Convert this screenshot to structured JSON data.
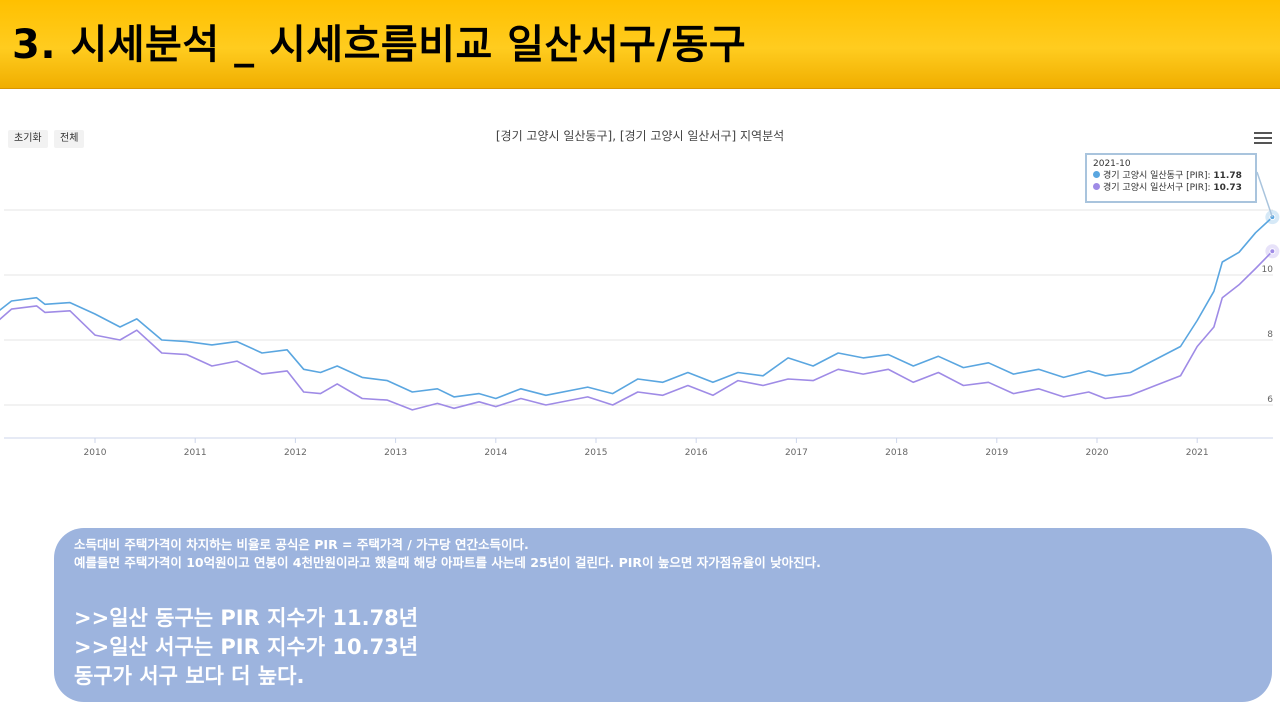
{
  "header": {
    "title": "3. 시세분석 _ 시세흐름비교 일산서구/동구"
  },
  "toolbar": {
    "reset_label": "초기화",
    "all_label": "전체"
  },
  "tooltip": {
    "date": "2021-10",
    "rows": [
      {
        "label": "경기 고양시 일산동구 [PIR]:",
        "value": "11.78"
      },
      {
        "label": "경기 고양시 일산서구 [PIR]:",
        "value": "10.73"
      }
    ]
  },
  "chart_data": {
    "type": "line",
    "title": "[경기 고양시 일산동구], [경기 고양시 일산서구] 지역분석",
    "xlabel": "",
    "ylabel": "",
    "x_ticks": [
      "2010",
      "2011",
      "2012",
      "2013",
      "2014",
      "2015",
      "2016",
      "2017",
      "2018",
      "2019",
      "2020",
      "2021"
    ],
    "y_ticks": [
      "6",
      "8",
      "10"
    ],
    "x_range": [
      "2009-01",
      "2021-10"
    ],
    "ylim": [
      5,
      12
    ],
    "grid": true,
    "legend": "none",
    "series": [
      {
        "name": "경기 고양시 일산동구 [PIR]",
        "color": "#5aa6e0",
        "points": [
          [
            "2009-01",
            8.8
          ],
          [
            "2009-03",
            9.2
          ],
          [
            "2009-06",
            9.3
          ],
          [
            "2009-07",
            9.1
          ],
          [
            "2009-10",
            9.15
          ],
          [
            "2010-01",
            8.8
          ],
          [
            "2010-04",
            8.4
          ],
          [
            "2010-06",
            8.65
          ],
          [
            "2010-09",
            8.0
          ],
          [
            "2010-12",
            7.95
          ],
          [
            "2011-03",
            7.85
          ],
          [
            "2011-06",
            7.95
          ],
          [
            "2011-09",
            7.6
          ],
          [
            "2011-12",
            7.7
          ],
          [
            "2012-02",
            7.1
          ],
          [
            "2012-04",
            7.0
          ],
          [
            "2012-06",
            7.2
          ],
          [
            "2012-09",
            6.85
          ],
          [
            "2012-12",
            6.75
          ],
          [
            "2013-03",
            6.4
          ],
          [
            "2013-06",
            6.5
          ],
          [
            "2013-08",
            6.25
          ],
          [
            "2013-11",
            6.35
          ],
          [
            "2014-01",
            6.2
          ],
          [
            "2014-04",
            6.5
          ],
          [
            "2014-07",
            6.3
          ],
          [
            "2014-12",
            6.55
          ],
          [
            "2015-03",
            6.35
          ],
          [
            "2015-06",
            6.8
          ],
          [
            "2015-09",
            6.7
          ],
          [
            "2015-12",
            7.0
          ],
          [
            "2016-03",
            6.7
          ],
          [
            "2016-06",
            7.0
          ],
          [
            "2016-09",
            6.9
          ],
          [
            "2016-12",
            7.45
          ],
          [
            "2017-03",
            7.2
          ],
          [
            "2017-06",
            7.6
          ],
          [
            "2017-09",
            7.45
          ],
          [
            "2017-12",
            7.55
          ],
          [
            "2018-03",
            7.2
          ],
          [
            "2018-06",
            7.5
          ],
          [
            "2018-09",
            7.15
          ],
          [
            "2018-12",
            7.3
          ],
          [
            "2019-03",
            6.95
          ],
          [
            "2019-06",
            7.1
          ],
          [
            "2019-09",
            6.85
          ],
          [
            "2019-12",
            7.05
          ],
          [
            "2020-02",
            6.9
          ],
          [
            "2020-05",
            7.0
          ],
          [
            "2020-08",
            7.4
          ],
          [
            "2020-11",
            7.8
          ],
          [
            "2021-01",
            8.6
          ],
          [
            "2021-03",
            9.5
          ],
          [
            "2021-04",
            10.4
          ],
          [
            "2021-06",
            10.7
          ],
          [
            "2021-08",
            11.3
          ],
          [
            "2021-10",
            11.78
          ]
        ]
      },
      {
        "name": "경기 고양시 일산서구 [PIR]",
        "color": "#9f8be6",
        "points": [
          [
            "2009-01",
            8.5
          ],
          [
            "2009-03",
            8.95
          ],
          [
            "2009-06",
            9.05
          ],
          [
            "2009-07",
            8.85
          ],
          [
            "2009-10",
            8.9
          ],
          [
            "2010-01",
            8.15
          ],
          [
            "2010-04",
            8.0
          ],
          [
            "2010-06",
            8.3
          ],
          [
            "2010-09",
            7.6
          ],
          [
            "2010-12",
            7.55
          ],
          [
            "2011-03",
            7.2
          ],
          [
            "2011-06",
            7.35
          ],
          [
            "2011-09",
            6.95
          ],
          [
            "2011-12",
            7.05
          ],
          [
            "2012-02",
            6.4
          ],
          [
            "2012-04",
            6.35
          ],
          [
            "2012-06",
            6.65
          ],
          [
            "2012-09",
            6.2
          ],
          [
            "2012-12",
            6.15
          ],
          [
            "2013-03",
            5.85
          ],
          [
            "2013-06",
            6.05
          ],
          [
            "2013-08",
            5.9
          ],
          [
            "2013-11",
            6.1
          ],
          [
            "2014-01",
            5.95
          ],
          [
            "2014-04",
            6.2
          ],
          [
            "2014-07",
            6.0
          ],
          [
            "2014-12",
            6.25
          ],
          [
            "2015-03",
            6.0
          ],
          [
            "2015-06",
            6.4
          ],
          [
            "2015-09",
            6.3
          ],
          [
            "2015-12",
            6.6
          ],
          [
            "2016-03",
            6.3
          ],
          [
            "2016-06",
            6.75
          ],
          [
            "2016-09",
            6.6
          ],
          [
            "2016-12",
            6.8
          ],
          [
            "2017-03",
            6.75
          ],
          [
            "2017-06",
            7.1
          ],
          [
            "2017-09",
            6.95
          ],
          [
            "2017-12",
            7.1
          ],
          [
            "2018-03",
            6.7
          ],
          [
            "2018-06",
            7.0
          ],
          [
            "2018-09",
            6.6
          ],
          [
            "2018-12",
            6.7
          ],
          [
            "2019-03",
            6.35
          ],
          [
            "2019-06",
            6.5
          ],
          [
            "2019-09",
            6.25
          ],
          [
            "2019-12",
            6.4
          ],
          [
            "2020-02",
            6.2
          ],
          [
            "2020-05",
            6.3
          ],
          [
            "2020-08",
            6.6
          ],
          [
            "2020-11",
            6.9
          ],
          [
            "2021-01",
            7.8
          ],
          [
            "2021-03",
            8.4
          ],
          [
            "2021-04",
            9.3
          ],
          [
            "2021-06",
            9.7
          ],
          [
            "2021-08",
            10.2
          ],
          [
            "2021-10",
            10.73
          ]
        ]
      }
    ]
  },
  "info": {
    "line1": "소득대비 주택가격이 차지하는 비율로 공식은 PIR = 주택가격 / 가구당 연간소득이다.",
    "line2": "예를들면 주택가격이 10억원이고 연봉이 4천만원이라고 했을때 해당 아파트를 사는데 25년이 걸린다. PIR이 높으면 자가점유율이 낮아진다.",
    "conclusion1": ">>일산 동구는 PIR 지수가 11.78년",
    "conclusion2": ">>일산 서구는 PIR 지수가 10.73년",
    "conclusion3": "동구가 서구 보다 더 높다."
  }
}
